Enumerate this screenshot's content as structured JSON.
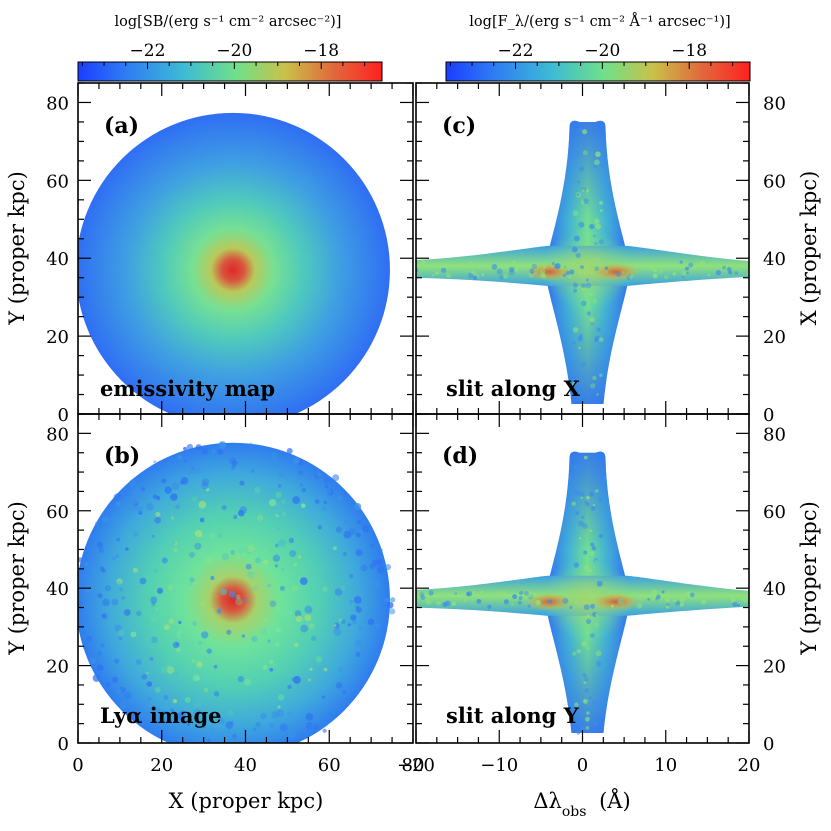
{
  "chart_data": {
    "type": "heatmap",
    "colorscale": [
      "#1a3dff",
      "#2f7df2",
      "#3cb9d6",
      "#6fe08a",
      "#c9c14a",
      "#e06a3c",
      "#ff2020"
    ],
    "colorbars": [
      {
        "id": "left",
        "title": "log[SB/(erg s⁻¹ cm⁻² arcsec⁻²)]",
        "range": [
          -23.6,
          -16.6
        ],
        "ticks": [
          -22,
          -20,
          -18
        ],
        "tick_labels": [
          "−22",
          "−20",
          "−18"
        ]
      },
      {
        "id": "right",
        "title": "log[F_λ/(erg s⁻¹ cm⁻² Å⁻¹ arcsec⁻¹)]",
        "range": [
          -23.6,
          -16.6
        ],
        "ticks": [
          -22,
          -20,
          -18
        ],
        "tick_labels": [
          "−22",
          "−20",
          "−18"
        ]
      }
    ],
    "panels": [
      {
        "id": "a",
        "label": "(a)",
        "note": "emissivity map",
        "kind": "map",
        "xlim": [
          0,
          80
        ],
        "ylim": [
          0,
          85
        ],
        "x_ticks": [
          0,
          20,
          40,
          60,
          80
        ],
        "y_ticks": [
          0,
          20,
          40,
          60,
          80
        ],
        "y_tick_labels": [
          "0",
          "20",
          "40",
          "60",
          "80"
        ],
        "ylabel": "Y (proper kpc)",
        "center": [
          37,
          37
        ],
        "radius": 37.5,
        "peak_logSB": -17.0,
        "edge_logSB": -23.2
      },
      {
        "id": "b",
        "label": "(b)",
        "note": "Lyα image",
        "kind": "map",
        "xlim": [
          0,
          80
        ],
        "ylim": [
          0,
          85
        ],
        "x_ticks": [
          0,
          20,
          40,
          60,
          80
        ],
        "x_tick_labels": [
          "0",
          "20",
          "40",
          "60",
          "80"
        ],
        "y_ticks": [
          0,
          20,
          40,
          60,
          80
        ],
        "y_tick_labels": [
          "0",
          "20",
          "40",
          "60",
          "80"
        ],
        "xlabel": "X (proper kpc)",
        "ylabel": "Y (proper kpc)",
        "center": [
          37,
          37
        ],
        "radius": 37.5,
        "peak_logSB": -17.0,
        "edge_logSB": -22.8
      },
      {
        "id": "c",
        "label": "(c)",
        "note": "slit along X",
        "kind": "spectrum",
        "xlim": [
          -20,
          20
        ],
        "ylim": [
          0,
          85
        ],
        "x_ticks": [
          -20,
          -10,
          0,
          10,
          20
        ],
        "y_ticks": [
          0,
          20,
          40,
          60,
          80
        ],
        "y_tick_labels": [
          "0",
          "20",
          "40",
          "60",
          "80"
        ],
        "ylabel_right": "X (proper kpc)",
        "center_y": 37,
        "peaks_dlambda": [
          -4,
          4
        ]
      },
      {
        "id": "d",
        "label": "(d)",
        "note": "slit along Y",
        "kind": "spectrum",
        "xlim": [
          -20,
          20
        ],
        "ylim": [
          0,
          85
        ],
        "x_ticks": [
          -20,
          -10,
          0,
          10,
          20
        ],
        "x_tick_labels": [
          "−20",
          "−10",
          "0",
          "10",
          "20"
        ],
        "y_ticks": [
          0,
          20,
          40,
          60,
          80
        ],
        "y_tick_labels": [
          "0",
          "20",
          "40",
          "60",
          "80"
        ],
        "xlabel": "Δλ_obs (Å)",
        "ylabel_right": "Y (proper kpc)",
        "center_y": 37,
        "peaks_dlambda": [
          -4,
          4
        ]
      }
    ]
  }
}
